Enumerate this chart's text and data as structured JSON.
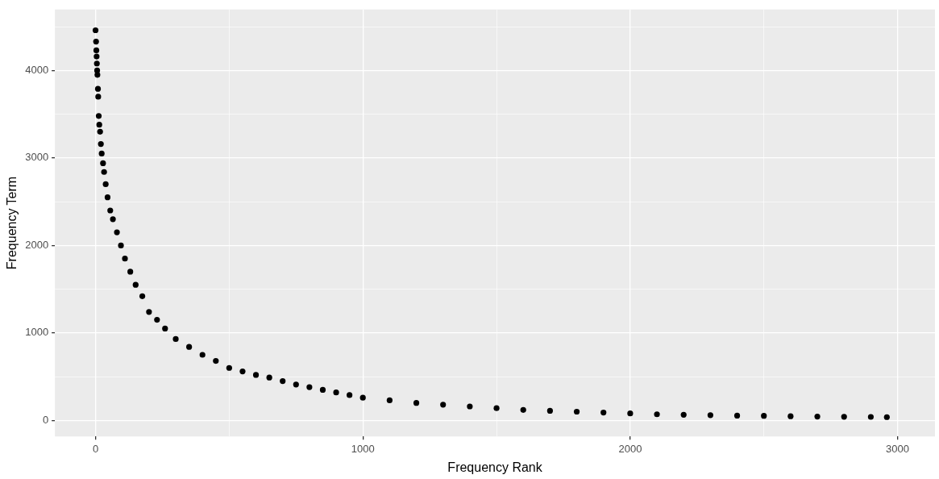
{
  "chart_data": {
    "type": "scatter",
    "xlabel": "Frequency Rank",
    "ylabel": "Frequency Term",
    "xlim": [
      -152,
      3140
    ],
    "ylim": [
      -183,
      4697
    ],
    "xticks": [
      0,
      {
        "value": 500,
        "label": null
      },
      1000,
      {
        "value": 1500,
        "label": null
      },
      2000,
      {
        "value": 2500,
        "label": null
      },
      3000
    ],
    "yticks": [
      0,
      {
        "value": 500,
        "label": null
      },
      1000,
      {
        "value": 1500,
        "label": null
      },
      2000,
      {
        "value": 2500,
        "label": null
      },
      3000,
      {
        "value": 3500,
        "label": null
      },
      4000,
      {
        "value": 4500,
        "label": null
      }
    ],
    "grid": true,
    "marker": "circle",
    "series": [
      {
        "color": "#000000",
        "x": [
          0,
          2,
          3,
          4,
          5,
          6,
          7,
          9,
          10,
          12,
          14,
          17,
          20,
          23,
          28,
          32,
          38,
          45,
          55,
          65,
          80,
          95,
          110,
          130,
          150,
          175,
          200,
          230,
          260,
          300,
          350,
          400,
          450,
          500,
          550,
          600,
          650,
          700,
          750,
          800,
          850,
          900,
          950,
          1000,
          1100,
          1200,
          1300,
          1400,
          1500,
          1600,
          1700,
          1800,
          1900,
          2000,
          2100,
          2200,
          2300,
          2400,
          2500,
          2600,
          2700,
          2800,
          2900,
          2960
        ],
        "values": [
          4460,
          4330,
          4230,
          4160,
          4080,
          4000,
          3950,
          3790,
          3700,
          3480,
          3380,
          3300,
          3160,
          3050,
          2940,
          2840,
          2700,
          2550,
          2400,
          2300,
          2150,
          2000,
          1850,
          1700,
          1550,
          1420,
          1240,
          1150,
          1050,
          930,
          840,
          750,
          680,
          600,
          560,
          520,
          490,
          450,
          410,
          380,
          350,
          320,
          290,
          260,
          230,
          200,
          180,
          160,
          140,
          120,
          110,
          100,
          90,
          80,
          70,
          65,
          60,
          55,
          52,
          48,
          44,
          42,
          40,
          38
        ]
      }
    ]
  }
}
